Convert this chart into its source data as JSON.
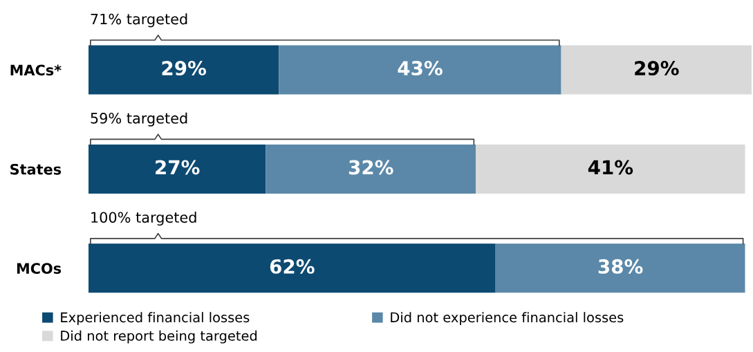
{
  "chart_data": {
    "type": "bar",
    "orientation": "horizontal",
    "stacked": true,
    "legend": "bottom",
    "grid": false,
    "tick_labels": "y",
    "categories": [
      "MACs*",
      "States",
      "MCOs"
    ],
    "series": [
      {
        "name": "Experienced financial losses",
        "color": "#0d4a72",
        "values": [
          29,
          27,
          62
        ],
        "value_labels": [
          "29%",
          "27%",
          "62%"
        ]
      },
      {
        "name": "Did not experience financial losses",
        "color": "#5b88a8",
        "values": [
          43,
          32,
          38
        ],
        "value_labels": [
          "43%",
          "32%",
          "38%"
        ]
      },
      {
        "name": "Did not report being targeted",
        "color": "#d9d9d9",
        "values": [
          29,
          41,
          null
        ],
        "value_labels": [
          "29%",
          "41%",
          null
        ]
      }
    ],
    "annotations": [
      "71% targeted",
      "59% targeted",
      "100% targeted"
    ]
  }
}
